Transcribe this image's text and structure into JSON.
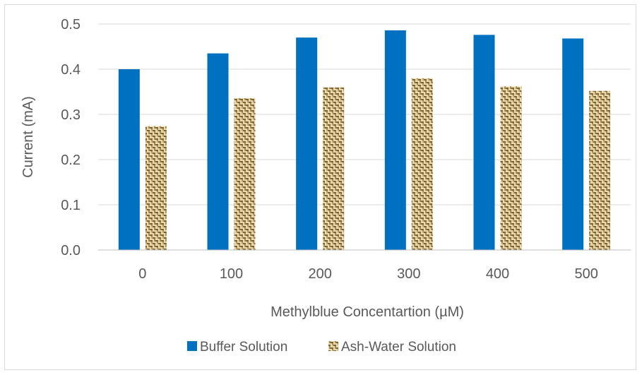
{
  "chart_data": {
    "type": "bar",
    "title": "",
    "xlabel": "Methylblue Concentartion (µM)",
    "ylabel": "Current (mA)",
    "categories": [
      "0",
      "100",
      "200",
      "300",
      "400",
      "500"
    ],
    "ylim": [
      0,
      0.5
    ],
    "yticks": [
      "0.0",
      "0.1",
      "0.2",
      "0.3",
      "0.4",
      "0.5"
    ],
    "grid": true,
    "legend_position": "bottom",
    "series": [
      {
        "name": "Buffer Solution",
        "color": "#0070C0",
        "pattern": "solid",
        "values": [
          0.4,
          0.435,
          0.47,
          0.486,
          0.476,
          0.468
        ]
      },
      {
        "name": "Ash-Water Solution",
        "color": "#B89A5A",
        "pattern": "woven",
        "values": [
          0.274,
          0.336,
          0.36,
          0.38,
          0.362,
          0.352
        ]
      }
    ]
  }
}
